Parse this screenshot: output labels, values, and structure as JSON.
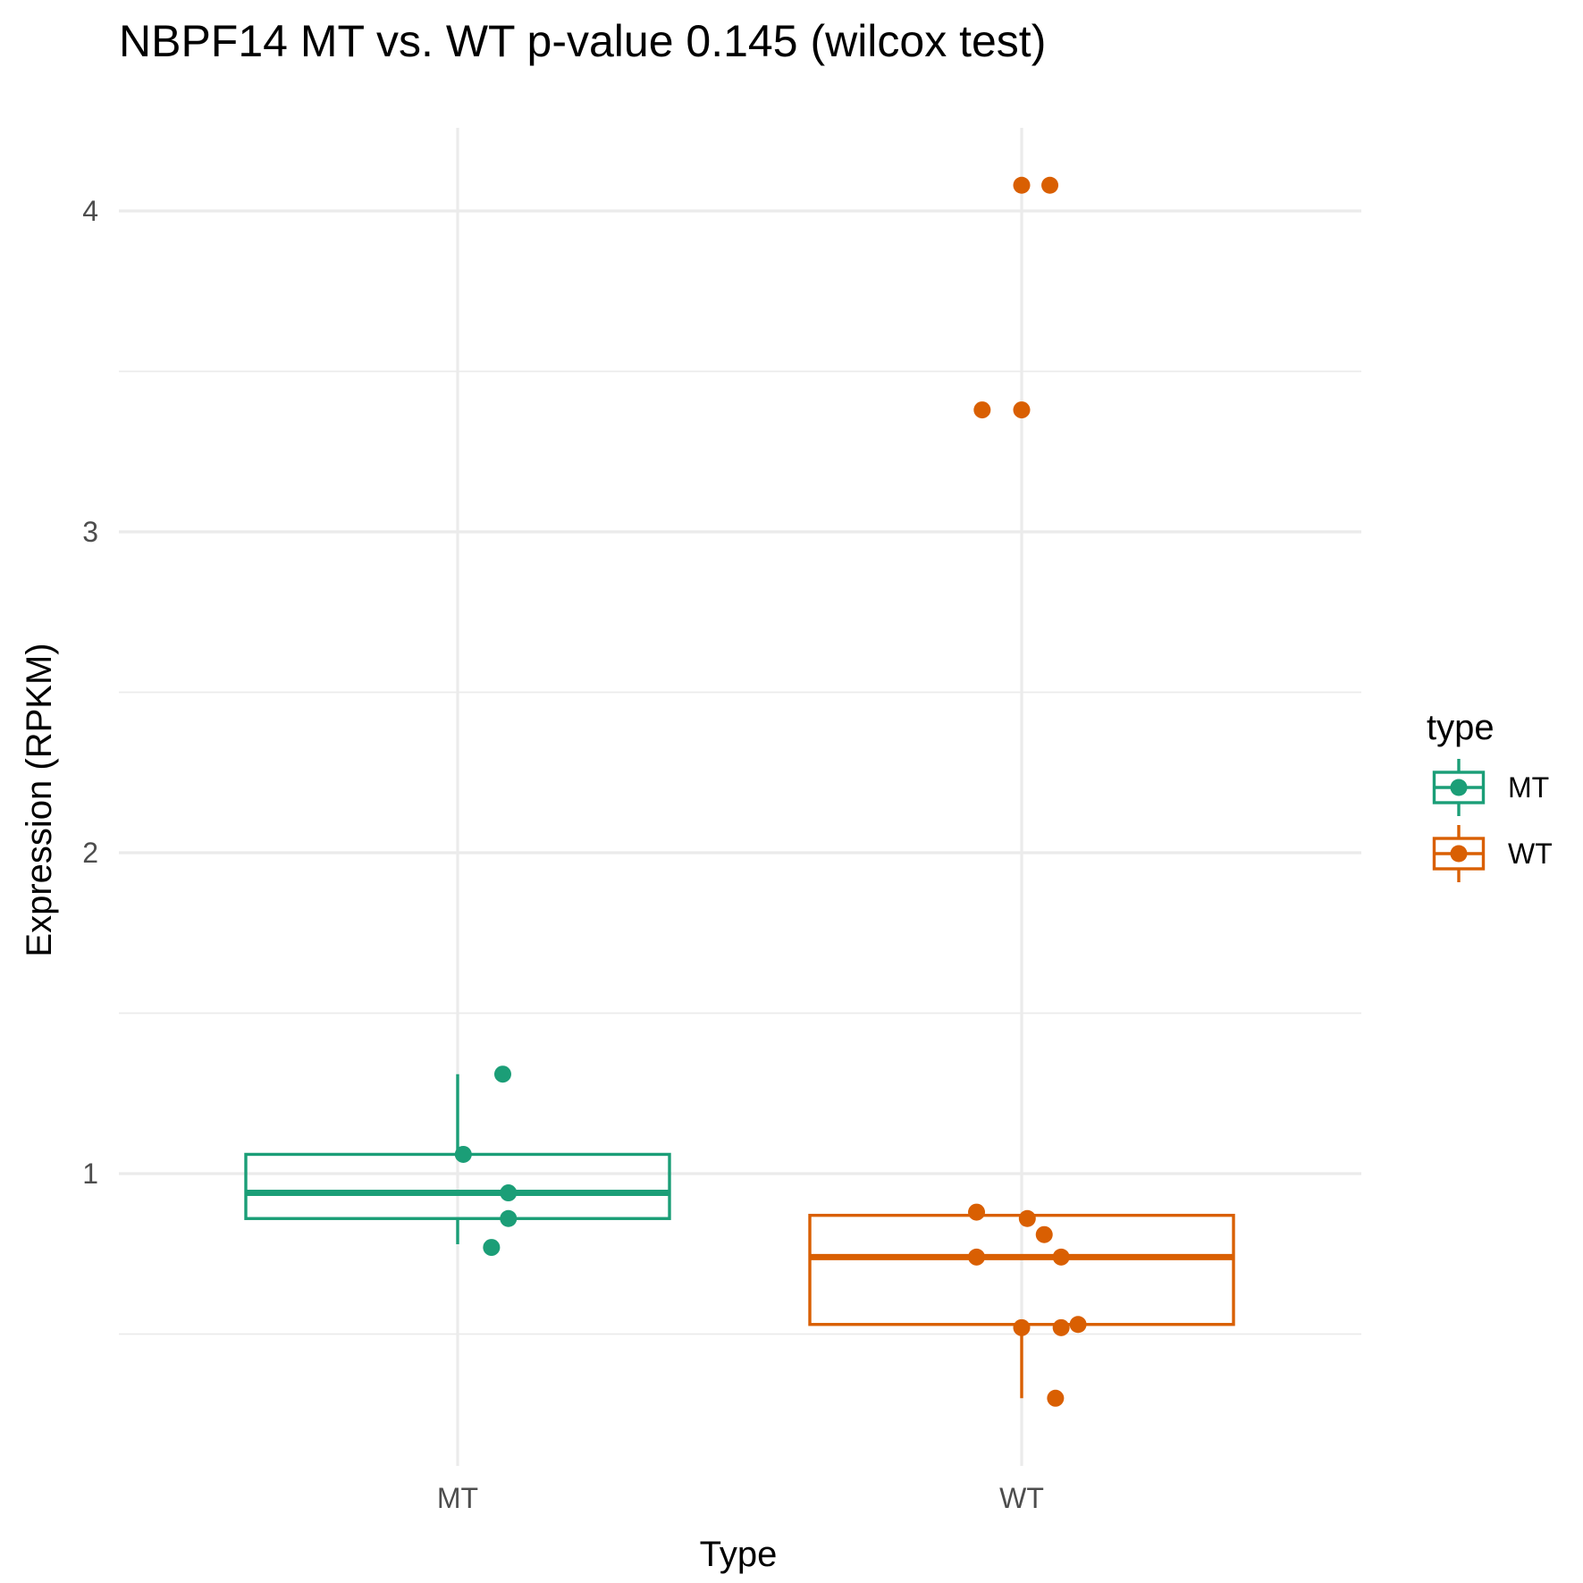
{
  "chart_data": {
    "type": "box",
    "title": "NBPF14 MT vs. WT p-value 0.145 (wilcox test)",
    "xlabel": "Type",
    "ylabel": "Expression (RPKM)",
    "categories": [
      "MT",
      "WT"
    ],
    "ylim": [
      0.28,
      4.27
    ],
    "yticks": [
      1,
      2,
      3,
      4
    ],
    "grid": true,
    "legend": {
      "title": "type",
      "placement": "right",
      "entries": [
        "MT",
        "WT"
      ]
    },
    "colors": {
      "MT": "#1b9e77",
      "WT": "#d95f02"
    },
    "series": [
      {
        "name": "MT",
        "box": {
          "whisker_low": 0.78,
          "q1": 0.86,
          "median": 0.94,
          "q3": 1.06,
          "whisker_high": 1.31
        },
        "points": [
          {
            "x": 0.08,
            "y": 1.31
          },
          {
            "x": 0.01,
            "y": 1.06
          },
          {
            "x": 0.09,
            "y": 0.94
          },
          {
            "x": 0.09,
            "y": 0.86
          },
          {
            "x": 0.06,
            "y": 0.77
          }
        ]
      },
      {
        "name": "WT",
        "box": {
          "whisker_low": 0.3,
          "q1": 0.53,
          "median": 0.74,
          "q3": 0.87,
          "whisker_high": 0.87
        },
        "points": [
          {
            "x": 0.0,
            "y": 4.08
          },
          {
            "x": 0.05,
            "y": 4.08
          },
          {
            "x": -0.07,
            "y": 3.38
          },
          {
            "x": 0.0,
            "y": 3.38
          },
          {
            "x": -0.08,
            "y": 0.88
          },
          {
            "x": 0.01,
            "y": 0.86
          },
          {
            "x": 0.04,
            "y": 0.81
          },
          {
            "x": -0.08,
            "y": 0.74
          },
          {
            "x": 0.07,
            "y": 0.74
          },
          {
            "x": 0.1,
            "y": 0.53
          },
          {
            "x": 0.0,
            "y": 0.52
          },
          {
            "x": 0.07,
            "y": 0.52
          },
          {
            "x": 0.06,
            "y": 0.3
          }
        ]
      }
    ]
  }
}
